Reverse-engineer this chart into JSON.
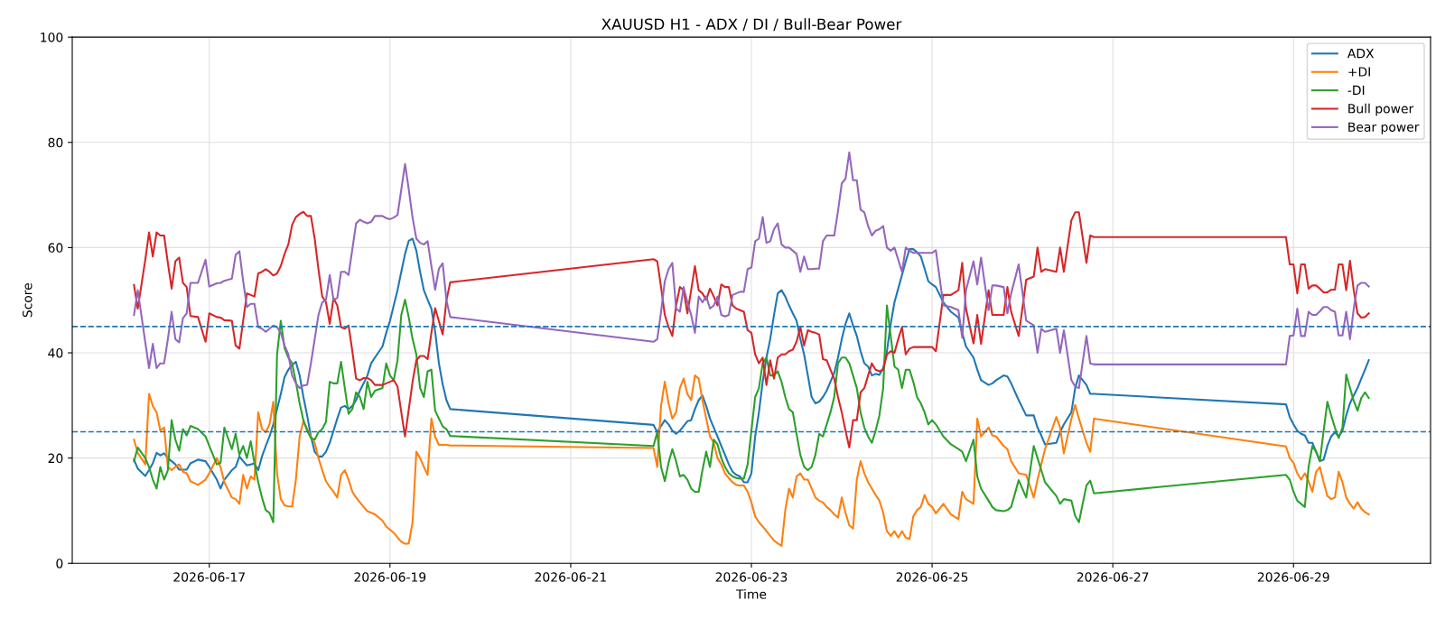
{
  "chart_data": {
    "type": "line",
    "title": "XAUUSD H1 - ADX / DI / Bull-Bear Power",
    "xlabel": "Time",
    "ylabel": "Score",
    "x": [
      "2026-06-16T04:00",
      "2026-06-16T05:00",
      "2026-06-16T07:00",
      "2026-06-16T08:00",
      "2026-06-16T09:00",
      "2026-06-16T10:00",
      "2026-06-16T11:00",
      "2026-06-16T12:00",
      "2026-06-16T13:00",
      "2026-06-16T14:00",
      "2026-06-16T15:00",
      "2026-06-16T16:00",
      "2026-06-16T17:00",
      "2026-06-16T18:00",
      "2026-06-16T19:00",
      "2026-06-16T21:00",
      "2026-06-16T23:00",
      "2026-06-17T00:00",
      "2026-06-17T02:00",
      "2026-06-17T03:00",
      "2026-06-17T04:00",
      "2026-06-17T06:00",
      "2026-06-17T07:00",
      "2026-06-17T08:00",
      "2026-06-17T09:00",
      "2026-06-17T10:00",
      "2026-06-17T11:00",
      "2026-06-17T12:00",
      "2026-06-17T13:00",
      "2026-06-17T14:00",
      "2026-06-17T15:00",
      "2026-06-17T16:00",
      "2026-06-17T17:00",
      "2026-06-17T18:00",
      "2026-06-17T19:00",
      "2026-06-17T20:00",
      "2026-06-17T21:00",
      "2026-06-17T22:00",
      "2026-06-17T23:00",
      "2026-06-18T00:00",
      "2026-06-18T01:00",
      "2026-06-18T02:00",
      "2026-06-18T03:00",
      "2026-06-18T04:00",
      "2026-06-18T05:00",
      "2026-06-18T06:00",
      "2026-06-18T07:00",
      "2026-06-18T08:00",
      "2026-06-18T09:00",
      "2026-06-18T10:00",
      "2026-06-18T11:00",
      "2026-06-18T12:00",
      "2026-06-18T13:00",
      "2026-06-18T14:00",
      "2026-06-18T15:00",
      "2026-06-18T16:00",
      "2026-06-18T17:00",
      "2026-06-18T18:00",
      "2026-06-18T19:00",
      "2026-06-18T20:00",
      "2026-06-18T22:00",
      "2026-06-18T23:00",
      "2026-06-19T00:00",
      "2026-06-19T01:00",
      "2026-06-19T02:00",
      "2026-06-19T03:00",
      "2026-06-19T04:00",
      "2026-06-19T05:00",
      "2026-06-19T06:00",
      "2026-06-19T07:00",
      "2026-06-19T08:00",
      "2026-06-19T09:00",
      "2026-06-19T10:00",
      "2026-06-19T11:00",
      "2026-06-19T12:00",
      "2026-06-19T13:00",
      "2026-06-19T14:00",
      "2026-06-19T15:00",
      "2026-06-19T16:00",
      "2026-06-21T22:00",
      "2026-06-21T23:00",
      "2026-06-22T00:00",
      "2026-06-22T01:00",
      "2026-06-22T02:00",
      "2026-06-22T03:00",
      "2026-06-22T04:00",
      "2026-06-22T05:00",
      "2026-06-22T06:00",
      "2026-06-22T07:00",
      "2026-06-22T08:00",
      "2026-06-22T09:00",
      "2026-06-22T10:00",
      "2026-06-22T11:00",
      "2026-06-22T12:00",
      "2026-06-22T13:00",
      "2026-06-22T14:00",
      "2026-06-22T15:00",
      "2026-06-22T16:00",
      "2026-06-22T17:00",
      "2026-06-22T18:00",
      "2026-06-22T19:00",
      "2026-06-22T20:00",
      "2026-06-22T21:00",
      "2026-06-22T22:00",
      "2026-06-22T23:00",
      "2026-06-23T00:00",
      "2026-06-23T01:00",
      "2026-06-23T02:00",
      "2026-06-23T03:00",
      "2026-06-23T04:00",
      "2026-06-23T05:00",
      "2026-06-23T06:00",
      "2026-06-23T07:00",
      "2026-06-23T08:00",
      "2026-06-23T09:00",
      "2026-06-23T10:00",
      "2026-06-23T11:00",
      "2026-06-23T12:00",
      "2026-06-23T13:00",
      "2026-06-23T14:00",
      "2026-06-23T15:00",
      "2026-06-23T16:00",
      "2026-06-23T17:00",
      "2026-06-23T18:00",
      "2026-06-23T19:00",
      "2026-06-23T20:00",
      "2026-06-23T21:00",
      "2026-06-23T22:00",
      "2026-06-23T23:00",
      "2026-06-24T00:00",
      "2026-06-24T01:00",
      "2026-06-24T02:00",
      "2026-06-24T03:00",
      "2026-06-24T04:00",
      "2026-06-24T05:00",
      "2026-06-24T06:00",
      "2026-06-24T07:00",
      "2026-06-24T08:00",
      "2026-06-24T09:00",
      "2026-06-24T10:00",
      "2026-06-24T11:00",
      "2026-06-24T12:00",
      "2026-06-24T13:00",
      "2026-06-24T14:00",
      "2026-06-24T15:00",
      "2026-06-24T16:00",
      "2026-06-24T17:00",
      "2026-06-24T18:00",
      "2026-06-24T19:00",
      "2026-06-24T20:00",
      "2026-06-24T21:00",
      "2026-06-24T22:00",
      "2026-06-24T23:00",
      "2026-06-25T00:00",
      "2026-06-25T01:00",
      "2026-06-25T03:00",
      "2026-06-25T05:00",
      "2026-06-25T07:00",
      "2026-06-25T08:00",
      "2026-06-25T09:00",
      "2026-06-25T11:00",
      "2026-06-25T12:00",
      "2026-06-25T13:00",
      "2026-06-25T15:00",
      "2026-06-25T16:00",
      "2026-06-25T17:00",
      "2026-06-25T19:00",
      "2026-06-25T20:00",
      "2026-06-25T21:00",
      "2026-06-25T23:00",
      "2026-06-26T01:00",
      "2026-06-26T03:00",
      "2026-06-26T04:00",
      "2026-06-26T05:00",
      "2026-06-26T06:00",
      "2026-06-26T09:00",
      "2026-06-26T10:00",
      "2026-06-26T11:00",
      "2026-06-26T13:00",
      "2026-06-26T14:00",
      "2026-06-26T15:00",
      "2026-06-26T17:00",
      "2026-06-26T18:00",
      "2026-06-26T19:00",
      "2026-06-28T22:00",
      "2026-06-28T23:00",
      "2026-06-29T00:00",
      "2026-06-29T01:00",
      "2026-06-29T02:00",
      "2026-06-29T03:00",
      "2026-06-29T04:00",
      "2026-06-29T05:00",
      "2026-06-29T06:00",
      "2026-06-29T07:00",
      "2026-06-29T08:00",
      "2026-06-29T09:00",
      "2026-06-29T10:00",
      "2026-06-29T11:00",
      "2026-06-29T12:00",
      "2026-06-29T13:00",
      "2026-06-29T14:00",
      "2026-06-29T15:00",
      "2026-06-29T16:00",
      "2026-06-29T17:00",
      "2026-06-29T18:00",
      "2026-06-29T19:00",
      "2026-06-29T20:00"
    ],
    "series": [
      {
        "name": "ADX",
        "color": "#1f77b4",
        "values": [
          19.7,
          18,
          16.6,
          17.7,
          19,
          21,
          20.5,
          20.9,
          20,
          19.4,
          18.8,
          17.8,
          17.8,
          17.8,
          19,
          19.7,
          19.4,
          18.3,
          15.9,
          14.2,
          15.9,
          17.7,
          18.3,
          20.3,
          19.4,
          18.6,
          18.8,
          19,
          17.7,
          20.3,
          22.3,
          24.1,
          26.4,
          29.3,
          32.2,
          35.4,
          36.8,
          37.7,
          38.3,
          35.7,
          31.6,
          28.1,
          24.1,
          21.2,
          20.3,
          20.3,
          21.2,
          22.9,
          25.2,
          27.5,
          29.6,
          29.9,
          29.3,
          29.9,
          31,
          32.8,
          34.2,
          35.7,
          38,
          39.1,
          41.2,
          43.8,
          46.1,
          49,
          51.9,
          55.4,
          58.8,
          61.3,
          61.7,
          59.4,
          55.4,
          51.9,
          50.1,
          48.4,
          44,
          38,
          34,
          31,
          29.3,
          26.3,
          24.9,
          26.1,
          27.2,
          26.4,
          25.2,
          24.6,
          25.2,
          26.1,
          27,
          27.2,
          29.3,
          31,
          31.9,
          29.9,
          27.5,
          25.8,
          24.1,
          22.3,
          20.6,
          18.8,
          17.4,
          16.8,
          16.5,
          15.4,
          15.4,
          17.1,
          24.1,
          28.7,
          34.5,
          39.1,
          42.6,
          47.2,
          51.3,
          51.9,
          50.7,
          49,
          47.5,
          46.1,
          42.6,
          39.7,
          35.7,
          31.6,
          30.4,
          30.7,
          31.6,
          32.8,
          34.5,
          36.2,
          39.1,
          42.6,
          45.5,
          47.5,
          45.2,
          43.2,
          40.3,
          38,
          37.4,
          35.7,
          36,
          35.8,
          37.1,
          40.3,
          45.5,
          49.6,
          52.2,
          54.8,
          57.4,
          59.7,
          59.7,
          59.1,
          58.3,
          56,
          53.6,
          53,
          52.5,
          49.6,
          47.8,
          46.7,
          43.8,
          41.2,
          39.1,
          36.8,
          34.8,
          33.9,
          34.2,
          34.8,
          35.7,
          35.5,
          34.2,
          31,
          28.1,
          28.1,
          25.8,
          24.3,
          22.6,
          22.9,
          24.9,
          26.4,
          28.7,
          33.3,
          35.7,
          33.9,
          32.2,
          32.2,
          30.2,
          27.8,
          26.4,
          25.2,
          24.6,
          24.3,
          22.9,
          22.9,
          21.2,
          19.4,
          19.7,
          22.3,
          24.1,
          24.9,
          24.1,
          25.2,
          28.1,
          30.4,
          31.9,
          33.3,
          35.1,
          36.8,
          38.6
        ]
      },
      {
        "name": "+DI",
        "color": "#ff7f0e",
        "values": [
          23.5,
          21,
          18.8,
          32.2,
          29.9,
          28.7,
          25.2,
          25.8,
          18.3,
          17.7,
          18.3,
          18.8,
          17.4,
          17.1,
          15.6,
          14.9,
          15.9,
          17.1,
          20,
          18.3,
          15.4,
          12.5,
          12.2,
          11.3,
          16.8,
          14.2,
          16.5,
          15.9,
          28.7,
          25.5,
          24.9,
          26.4,
          30.7,
          17.1,
          12.2,
          11,
          10.8,
          10.8,
          15.9,
          24.1,
          27,
          25.5,
          24.1,
          22.9,
          20,
          17.7,
          15.6,
          14.5,
          13.6,
          12.5,
          16.8,
          17.7,
          15.9,
          13.6,
          12.5,
          11.6,
          10.7,
          9.9,
          9.6,
          9.3,
          8.1,
          7,
          6.4,
          5.8,
          4.9,
          4.1,
          3.7,
          3.8,
          7.8,
          21.2,
          20,
          18.3,
          16.8,
          27.5,
          24,
          22.5,
          22.5,
          22.5,
          22.4,
          21.9,
          18.3,
          29.9,
          34.5,
          30.4,
          27.5,
          28.7,
          33.3,
          35.1,
          32.2,
          31,
          35.7,
          35.1,
          31,
          27.5,
          24.1,
          22.9,
          20,
          18.8,
          17.1,
          16.2,
          15.4,
          14.9,
          14.8,
          14.8,
          13.6,
          11.6,
          8.9,
          7.8,
          7,
          6.1,
          5.2,
          4.3,
          3.8,
          3.3,
          10.1,
          14.2,
          12.5,
          16.5,
          17.1,
          15.9,
          15.9,
          14.2,
          12.5,
          11.9,
          11.6,
          10.7,
          10.1,
          9.3,
          8.7,
          12.5,
          9.6,
          7.2,
          6.6,
          15.9,
          19.4,
          17.1,
          15.4,
          14.2,
          13,
          11.9,
          9.6,
          6.1,
          5.2,
          6.1,
          4.9,
          6.1,
          4.9,
          4.6,
          8.9,
          10.1,
          10.7,
          13,
          11.3,
          10.7,
          9.5,
          11.3,
          9.3,
          8.4,
          13.6,
          12.2,
          11.3,
          27.5,
          24.1,
          25.8,
          24.3,
          24.1,
          22.3,
          21.7,
          19.4,
          17.1,
          16.8,
          12.5,
          15.9,
          18.8,
          21.7,
          27.8,
          25.8,
          20.9,
          27.5,
          30.1,
          27.5,
          22.9,
          21.2,
          27.5,
          22.2,
          20,
          19.1,
          17.1,
          15.9,
          17.1,
          15.6,
          13.6,
          17.4,
          18.3,
          15.4,
          12.8,
          12.2,
          12.5,
          17.4,
          15.4,
          12.5,
          11.3,
          10.4,
          11.6,
          10.4,
          9.7,
          9.3
        ]
      },
      {
        "name": "-DI",
        "color": "#2ca02c",
        "values": [
          19.4,
          22,
          20,
          18.3,
          15.9,
          14.2,
          18.3,
          15.9,
          17.7,
          27.2,
          23.5,
          21.4,
          25.5,
          24.3,
          26.1,
          25.5,
          24.1,
          22.3,
          18.8,
          19.1,
          25.8,
          21.7,
          24.6,
          20.6,
          22.3,
          20,
          23.2,
          19.1,
          15.4,
          12.5,
          10.1,
          9.6,
          7.8,
          39.7,
          46.1,
          40.9,
          39.1,
          38,
          34.5,
          30.4,
          27.2,
          25.2,
          23.8,
          23.5,
          24.9,
          25.5,
          26.9,
          34.5,
          34.2,
          34.2,
          38.3,
          33.3,
          28.4,
          29.3,
          32.5,
          31.6,
          29.3,
          34.5,
          31.6,
          32.8,
          33.3,
          38,
          35.7,
          34.8,
          38.6,
          47.2,
          50.1,
          46.7,
          42.6,
          39.7,
          33.3,
          31.6,
          36.5,
          36.8,
          29,
          27.5,
          26,
          25.5,
          24.2,
          22.3,
          24.9,
          18.3,
          15.6,
          19.1,
          21.7,
          19.4,
          16.5,
          16.8,
          15.9,
          14.2,
          13.6,
          13.6,
          17.7,
          21.2,
          18.3,
          23.5,
          22.6,
          20,
          18.3,
          17.1,
          16.5,
          16.2,
          16.1,
          16.1,
          18.8,
          25.2,
          31.6,
          33.3,
          38,
          39.1,
          35.7,
          35.7,
          36.5,
          34.5,
          31.6,
          29.3,
          28.7,
          24.6,
          20.6,
          18.3,
          17.7,
          18.3,
          20.6,
          24.6,
          24.1,
          26.4,
          28.7,
          31.6,
          38,
          39.1,
          39.1,
          38,
          35.7,
          33.3,
          28.7,
          25.8,
          24.1,
          22.9,
          25.2,
          28.1,
          33.3,
          49,
          43.2,
          37.4,
          36.8,
          33.3,
          36.8,
          36.8,
          34.5,
          31.6,
          30.4,
          28.7,
          26.4,
          27.2,
          26.4,
          24.1,
          22.6,
          21.7,
          21.2,
          19.4,
          23.5,
          16.5,
          14.2,
          11.9,
          10.7,
          10.1,
          9.9,
          10.1,
          10.7,
          15.8,
          12.5,
          22.3,
          20,
          17.7,
          15.4,
          12.8,
          11.3,
          12.2,
          11.9,
          9,
          7.8,
          14.8,
          15.7,
          13.3,
          16.8,
          15.9,
          13.6,
          11.9,
          11.3,
          10.7,
          18.3,
          22.3,
          21.2,
          19.4,
          25.2,
          30.7,
          28.1,
          25.8,
          23.8,
          25.8,
          35.9,
          33.3,
          30.9,
          29,
          31.4,
          32.5,
          31.4
        ]
      },
      {
        "name": "Bull power",
        "color": "#d62728",
        "values": [
          52.9,
          48.4,
          57.7,
          62.9,
          58.3,
          62.9,
          62.3,
          62.3,
          57.1,
          52.2,
          57.4,
          58.1,
          53.3,
          52.5,
          47,
          46.8,
          42.1,
          47.5,
          46.8,
          46.7,
          46.2,
          46.1,
          41.4,
          40.8,
          46.1,
          51.3,
          51,
          50.7,
          55.1,
          55.4,
          55.9,
          55.4,
          54.7,
          55.1,
          56.5,
          58.8,
          60.6,
          64.3,
          65.8,
          66.4,
          66.8,
          66,
          66,
          61.7,
          55.9,
          50.7,
          49.6,
          45.5,
          50.4,
          49,
          44.9,
          44.6,
          45.2,
          40.3,
          35.1,
          34.8,
          35.2,
          35.2,
          34.8,
          33.9,
          33.9,
          34.2,
          34.5,
          34.8,
          33.6,
          28.7,
          24.1,
          29.3,
          34.5,
          38.6,
          39.4,
          39.4,
          38.8,
          43.8,
          48.5,
          46,
          43.5,
          50,
          53.4,
          57.8,
          57.4,
          52.5,
          47.2,
          44.9,
          43.2,
          49,
          52.5,
          51.9,
          47.5,
          51.9,
          56.5,
          51.9,
          51.3,
          50.1,
          52.2,
          50.7,
          49,
          53,
          52.5,
          52.5,
          49,
          48.4,
          48.1,
          47.8,
          44.3,
          43.8,
          39.7,
          38,
          39.1,
          33.9,
          38.6,
          35.1,
          39.1,
          39.7,
          39.7,
          40.3,
          40.6,
          42.1,
          44.9,
          41.4,
          44.3,
          44,
          43.8,
          43.5,
          38.8,
          38.6,
          36.8,
          35.1,
          31.6,
          28.7,
          25.2,
          22,
          27.2,
          27.2,
          32.5,
          33.3,
          35.7,
          38,
          36.8,
          36.5,
          36.8,
          39.7,
          40.3,
          40,
          42.6,
          44.9,
          39.7,
          40.8,
          41.1,
          41.1,
          41.1,
          41.1,
          41.1,
          41.1,
          40.3,
          51,
          51,
          51.9,
          57.1,
          48.4,
          41.8,
          47.2,
          41.7,
          51.9,
          47.2,
          47.2,
          47.2,
          52.5,
          47.8,
          43.2,
          53.9,
          54.5,
          60,
          55.4,
          55.9,
          55.4,
          60,
          55.4,
          65.2,
          66.7,
          66.7,
          57.1,
          62.3,
          62,
          62,
          56.8,
          56.8,
          51.3,
          56.8,
          56.8,
          52.2,
          52.8,
          52.8,
          52.2,
          51.5,
          51.5,
          52,
          52,
          56.8,
          56.8,
          51.9,
          57.5,
          51.9,
          47.5,
          46.7,
          46.8,
          47.5
        ]
      },
      {
        "name": "Bear power",
        "color": "#9467bd",
        "values": [
          47.2,
          51.9,
          42,
          37.1,
          41.7,
          37.1,
          38,
          38,
          42.6,
          47.8,
          42.6,
          42,
          46.6,
          47.5,
          53.3,
          53.3,
          57.7,
          52.6,
          53.2,
          53.3,
          53.7,
          54.1,
          58.6,
          59.3,
          53.6,
          48.7,
          49.3,
          49.3,
          44.9,
          44.6,
          44,
          44.6,
          45.2,
          44.9,
          43.8,
          41.4,
          39.7,
          35.7,
          34.2,
          33.3,
          33.8,
          33.9,
          38,
          42.6,
          47.2,
          49.6,
          50.1,
          54.8,
          50.1,
          50.4,
          55.4,
          55.4,
          54.8,
          59.7,
          64.6,
          65.3,
          64.9,
          64.6,
          64.9,
          66,
          66,
          65.6,
          65.4,
          65.7,
          66.2,
          71,
          75.9,
          71,
          65.7,
          61.7,
          60.9,
          60.6,
          61.2,
          56.5,
          52,
          56,
          57,
          50,
          46.8,
          42.1,
          42.6,
          47.8,
          53.6,
          55.9,
          57.1,
          48.4,
          47.8,
          52.5,
          49.6,
          47.2,
          43.8,
          50.7,
          49.6,
          50.7,
          48.4,
          49,
          50.7,
          47.2,
          46.9,
          47.2,
          51,
          51.3,
          51.6,
          51.6,
          55.9,
          56.2,
          61.2,
          61.7,
          65.8,
          60.9,
          61.2,
          63.5,
          64.6,
          60.6,
          60,
          60,
          59.4,
          58.8,
          55.4,
          58.3,
          55.9,
          55.9,
          56,
          56,
          61.2,
          62.3,
          62.3,
          62.3,
          66.9,
          72.2,
          73.1,
          78.1,
          72.8,
          72.8,
          67.2,
          66.7,
          64.1,
          62.3,
          63.2,
          63.5,
          64.1,
          60,
          59.4,
          60,
          57.7,
          55.4,
          60,
          59.4,
          59,
          59,
          59,
          59,
          59,
          59,
          59.5,
          49,
          48.7,
          48.1,
          42.9,
          51.9,
          57.4,
          53,
          58.1,
          48.1,
          52.8,
          52.8,
          52.5,
          47.5,
          51.3,
          56.8,
          46.1,
          45.2,
          40,
          44.6,
          44,
          44.6,
          40,
          44.3,
          34.8,
          33.6,
          33.3,
          43.2,
          38,
          37.8,
          37.8,
          43.2,
          43.3,
          48.4,
          43.2,
          43.2,
          47.8,
          47.2,
          47.2,
          47.9,
          48.7,
          48.7,
          48.1,
          47.8,
          43.3,
          43.3,
          47.8,
          42.6,
          48.4,
          52.8,
          53.3,
          53.3,
          52.6
        ]
      }
    ],
    "ref_lines": [
      {
        "axis": "y",
        "value": 45,
        "color": "#1f77b4",
        "line_style": "dashed"
      },
      {
        "axis": "y",
        "value": 25,
        "color": "#1f77b4",
        "line_style": "dashed"
      }
    ],
    "xlim": [
      "2026-06-15T11:36",
      "2026-06-30T12:24"
    ],
    "xticks": [
      "2026-06-17",
      "2026-06-19",
      "2026-06-21",
      "2026-06-23",
      "2026-06-25",
      "2026-06-27",
      "2026-06-29"
    ],
    "ylim": [
      0,
      100
    ],
    "yticks": [
      0,
      20,
      40,
      60,
      80,
      100
    ],
    "grid": true,
    "legend": "top right",
    "marker": "none",
    "line_style": "solid"
  }
}
